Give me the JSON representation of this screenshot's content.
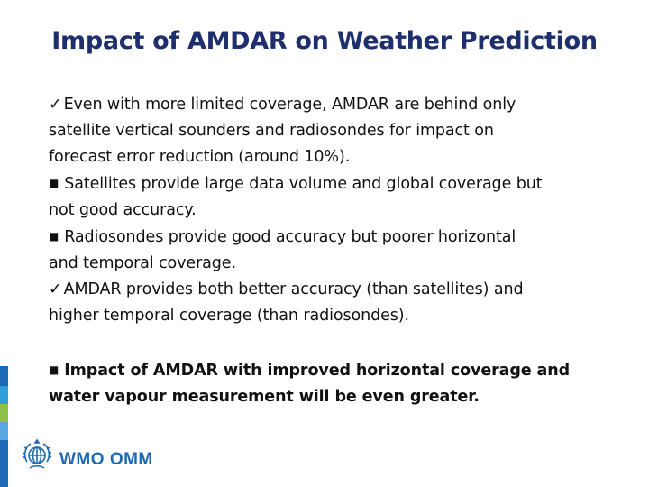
{
  "slide": {
    "title": "Impact of AMDAR on Weather Prediction",
    "colors": {
      "title": "#1f2f6e",
      "text": "#111111",
      "logo": "#1c6ab3",
      "strip": [
        "#1c6ab3",
        "#2e9fd8",
        "#8fc04a",
        "#5aa8e0",
        "#1c6ab3"
      ]
    },
    "body_lines": [
      {
        "bullet": "✓",
        "text": "Even with more limited coverage, AMDAR are behind only"
      },
      {
        "bullet": "",
        "text": "satellite vertical sounders and radiosondes for impact on"
      },
      {
        "bullet": "",
        "text": "forecast error reduction (around 10%)."
      },
      {
        "bullet": "■",
        "text": "Satellites provide large data volume and global coverage but"
      },
      {
        "bullet": "",
        "text": "not good accuracy."
      },
      {
        "bullet": "■",
        "text": "Radiosondes provide good accuracy but poorer horizontal"
      },
      {
        "bullet": "",
        "text": "and temporal coverage."
      },
      {
        "bullet": "✓",
        "text": "AMDAR provides both  better accuracy (than satellites) and"
      },
      {
        "bullet": "",
        "text": "higher temporal coverage (than radiosondes)."
      }
    ],
    "emphasis_lines": [
      {
        "bullet": "■",
        "text": "Impact of AMDAR with improved horizontal coverage and"
      },
      {
        "bullet": "",
        "text": "water vapour measurement will be even greater."
      }
    ],
    "logo": {
      "icon": "wmo-emblem-icon",
      "text": "WMO OMM"
    }
  }
}
